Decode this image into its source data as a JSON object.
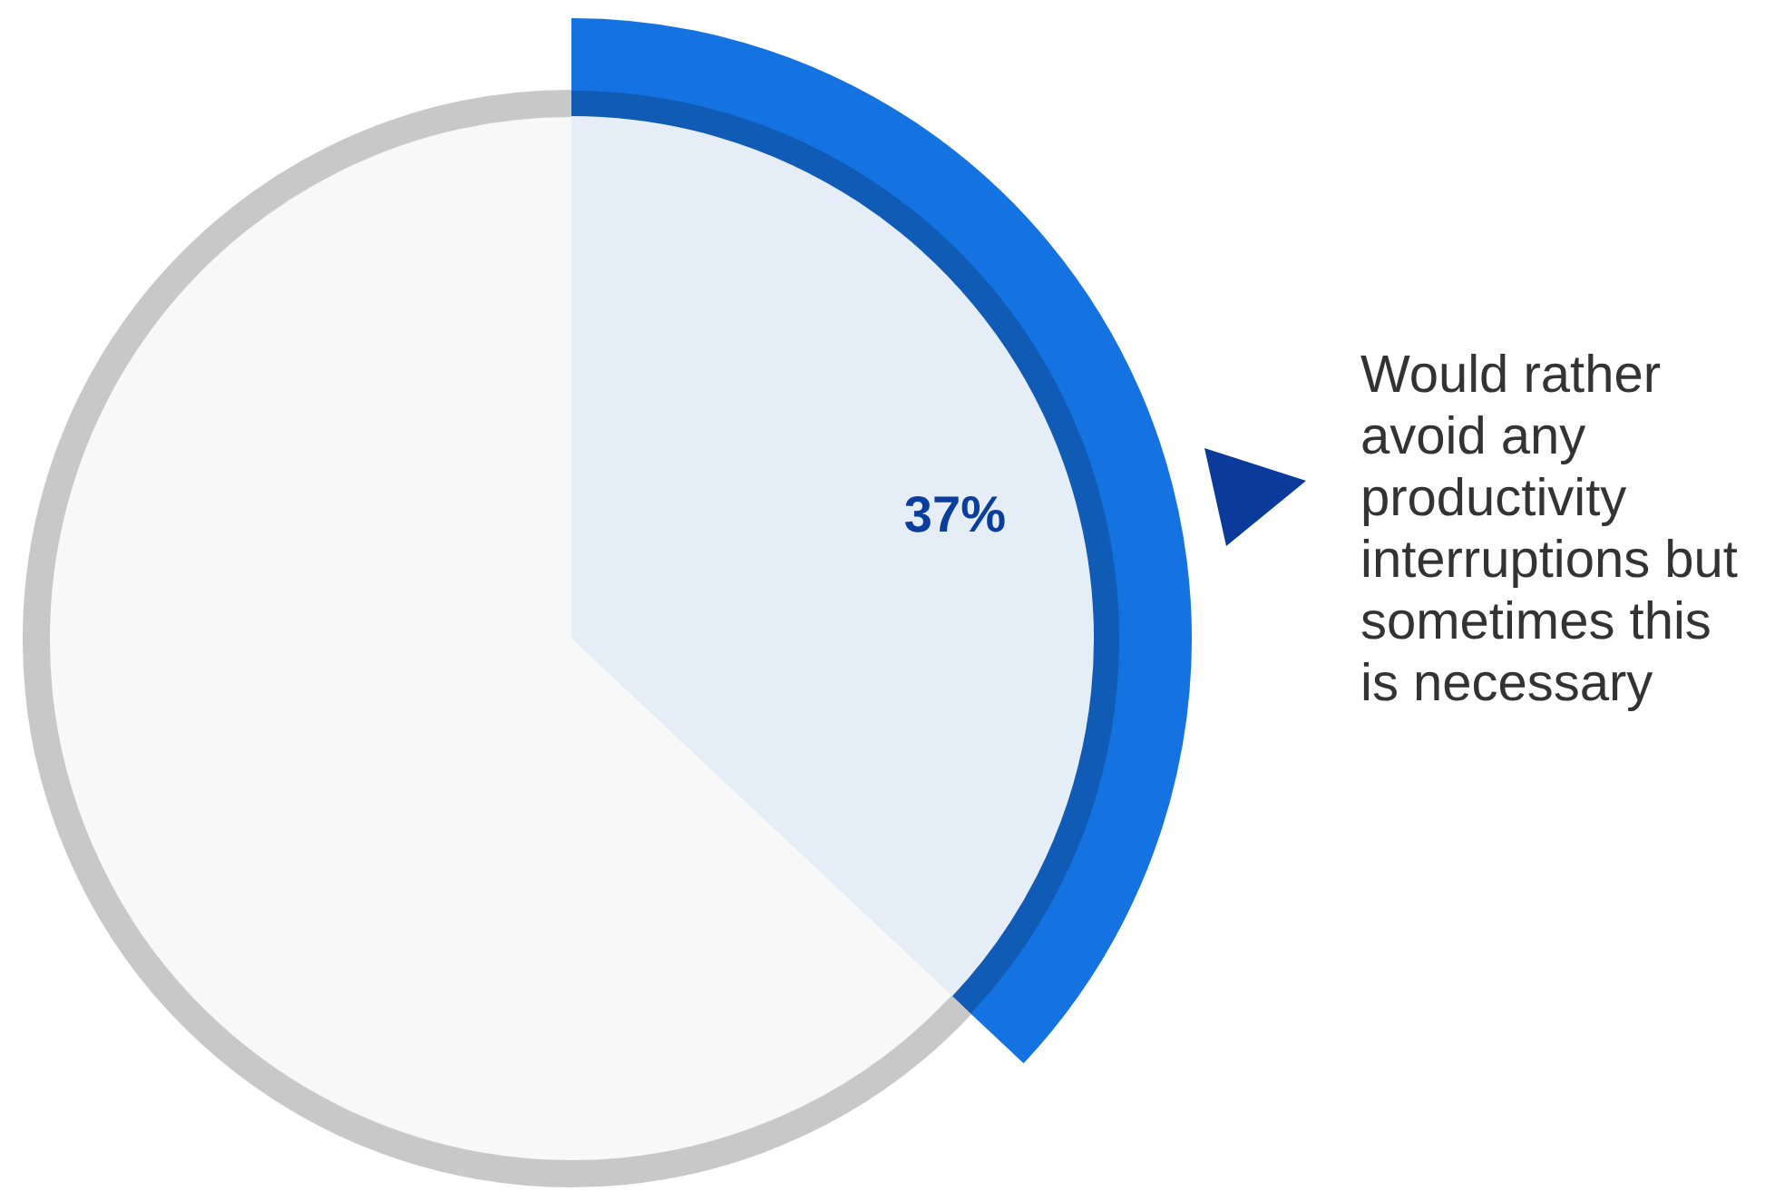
{
  "chart_data": {
    "type": "pie",
    "categories": [
      "Would rather avoid any productivity interruptions but sometimes this is necessary",
      null
    ],
    "values": [
      37,
      63
    ],
    "colors": [
      "#e5eef6",
      "#f8f8f8"
    ],
    "value_labels": [
      "37%",
      null
    ],
    "legend": false
  }
}
